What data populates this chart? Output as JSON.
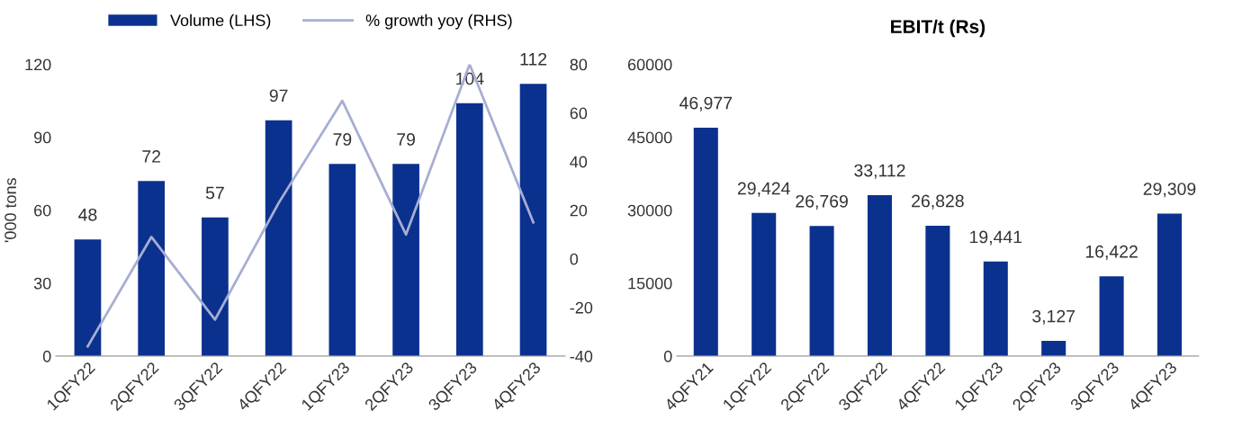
{
  "chart_data": [
    {
      "type": "bar",
      "ylabel": "'000 tons",
      "categories": [
        "1QFY22",
        "2QFY22",
        "3QFY22",
        "4QFY22",
        "1QFY23",
        "2QFY23",
        "3QFY23",
        "4QFY23"
      ],
      "series": [
        {
          "name": "Volume (LHS)",
          "color": "#0b318f",
          "values": [
            48,
            72,
            57,
            97,
            79,
            79,
            104,
            112
          ],
          "data_labels": true
        },
        {
          "name": "% growth yoy (RHS)",
          "type": "line",
          "axis": "y2",
          "color": "#a7aed3",
          "values": [
            -36,
            9,
            -25,
            23,
            65,
            10,
            80,
            15
          ]
        }
      ],
      "ylim": [
        0,
        120
      ],
      "yticks": [
        0,
        30,
        60,
        90,
        120
      ],
      "y2lim": [
        -40,
        80
      ],
      "y2ticks": [
        -40,
        -20,
        0,
        20,
        40,
        60,
        80
      ],
      "legend": "top",
      "grid": false
    },
    {
      "type": "bar",
      "title": "EBIT/t (Rs)",
      "categories": [
        "4QFY21",
        "1QFY22",
        "2QFY22",
        "3QFY22",
        "4QFY22",
        "1QFY23",
        "2QFY23",
        "3QFY23",
        "4QFY23"
      ],
      "series": [
        {
          "color": "#0b318f",
          "values": [
            46977,
            29424,
            26769,
            33112,
            26828,
            19441,
            3127,
            16422,
            29309
          ],
          "value_labels": [
            "46,977",
            "29,424",
            "26,769",
            "33,112",
            "26,828",
            "19,441",
            "3,127",
            "16,422",
            "29,309"
          ]
        }
      ],
      "ylim": [
        0,
        60000
      ],
      "yticks": [
        0,
        15000,
        30000,
        45000,
        60000
      ],
      "legend": false,
      "grid": false
    }
  ]
}
